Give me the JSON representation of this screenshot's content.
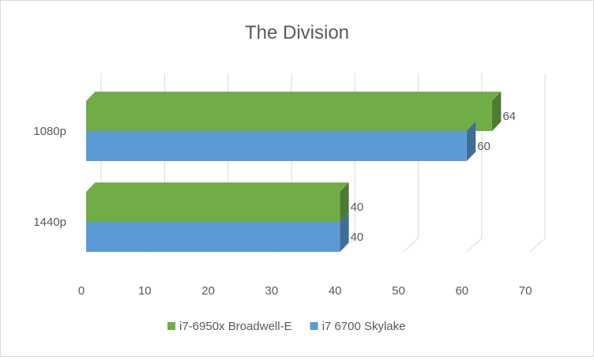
{
  "chart_data": {
    "type": "bar",
    "orientation": "horizontal",
    "style": "3d",
    "title": "The Division",
    "categories": [
      "1080p",
      "1440p"
    ],
    "series": [
      {
        "name": "i7-6950x Broadwell-E",
        "values": [
          64,
          40
        ],
        "color": "#70ad47",
        "shade_color": "#4e7a31"
      },
      {
        "name": "i7 6700 Skylake",
        "values": [
          60,
          40
        ],
        "color": "#5b9bd5",
        "shade_color": "#3d6d99"
      }
    ],
    "x_ticks": [
      "0",
      "10",
      "20",
      "30",
      "40",
      "50",
      "60",
      "70"
    ],
    "xlim": [
      0,
      70
    ],
    "grid": true,
    "data_labels": true,
    "legend_position": "bottom",
    "gridline_color": "#d9d9d9",
    "text_color": "#595959"
  }
}
